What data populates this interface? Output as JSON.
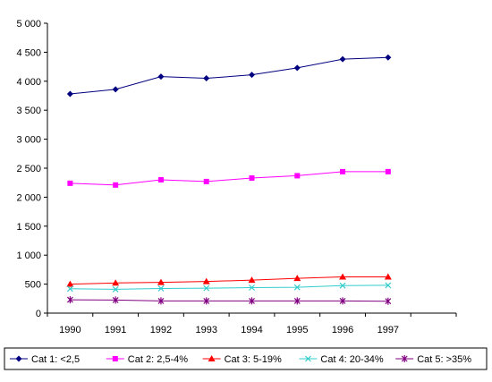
{
  "chart_data": {
    "type": "line",
    "title": "",
    "xlabel": "",
    "ylabel": "",
    "categories": [
      "1990",
      "1991",
      "1992",
      "1993",
      "1994",
      "1995",
      "1996",
      "1997"
    ],
    "ylim": [
      0,
      5000
    ],
    "yticks": [
      0,
      500,
      1000,
      1500,
      2000,
      2500,
      3000,
      3500,
      4000,
      4500,
      5000
    ],
    "ytick_labels": [
      "0",
      "500",
      "1 000",
      "1 500",
      "2 000",
      "2 500",
      "3 000",
      "3 500",
      "4 000",
      "4 500",
      "5 000"
    ],
    "grid": false,
    "legend_position": "bottom",
    "series": [
      {
        "name": "Cat 1: <2,5",
        "color": "#000080",
        "marker": "diamond",
        "values": [
          3780,
          3860,
          4080,
          4050,
          4110,
          4230,
          4380,
          4410
        ]
      },
      {
        "name": "Cat 2: 2,5-4%",
        "color": "#FF00FF",
        "marker": "square",
        "values": [
          2240,
          2210,
          2300,
          2270,
          2330,
          2370,
          2440,
          2440
        ]
      },
      {
        "name": "Cat 3: 5-19%",
        "color": "#FF0000",
        "marker": "triangle",
        "values": [
          500,
          520,
          530,
          545,
          570,
          600,
          625,
          625
        ]
      },
      {
        "name": "Cat 4: 20-34%",
        "color": "#33CCCC",
        "marker": "x",
        "values": [
          420,
          410,
          425,
          430,
          440,
          445,
          475,
          480
        ]
      },
      {
        "name": "Cat 5: >35%",
        "color": "#800080",
        "marker": "star",
        "values": [
          230,
          225,
          210,
          210,
          210,
          210,
          210,
          205
        ]
      }
    ]
  }
}
